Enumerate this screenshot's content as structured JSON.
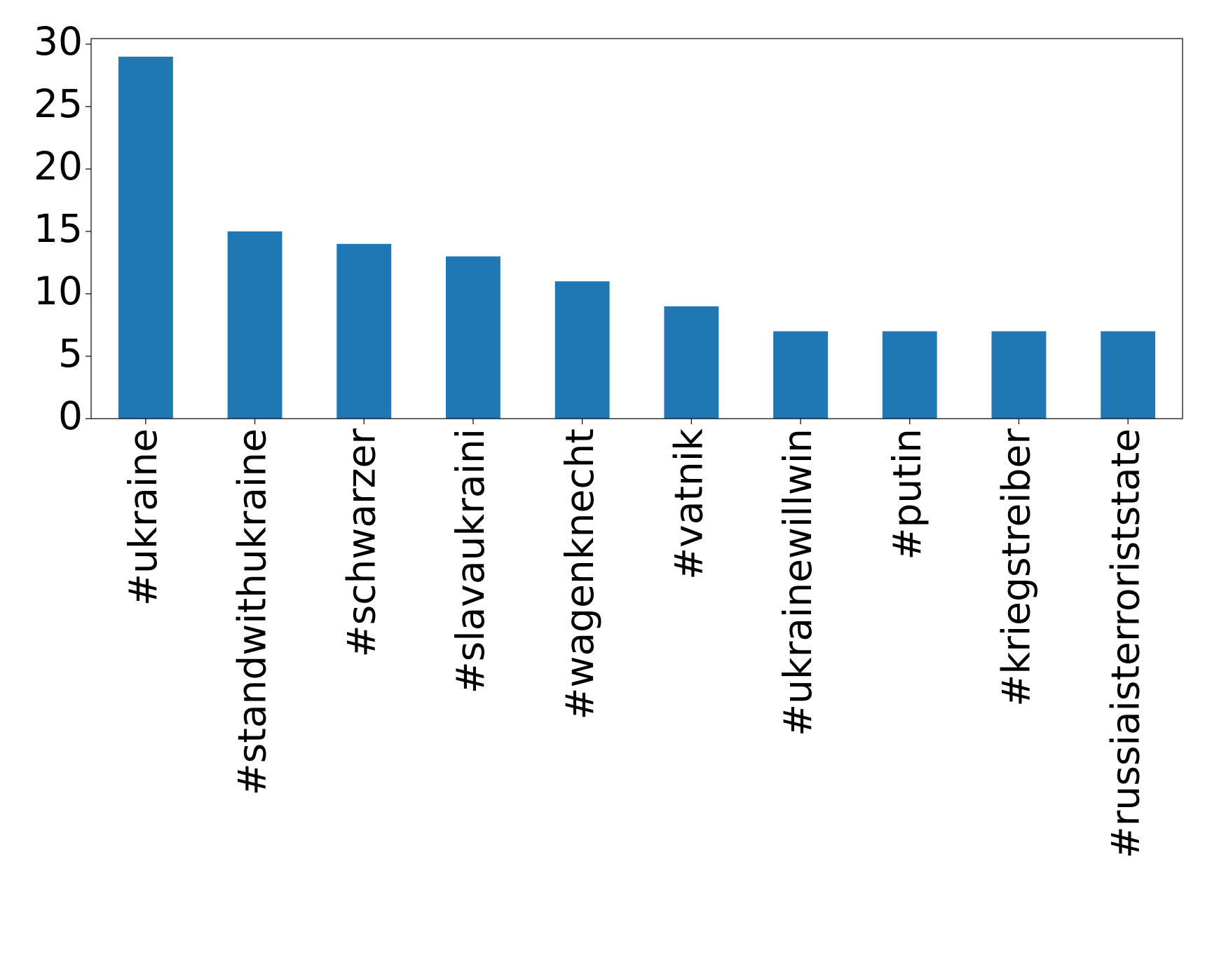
{
  "chart_data": {
    "type": "bar",
    "categories": [
      "#ukraine",
      "#standwithukraine",
      "#schwarzer",
      "#slavaukraini",
      "#wagenknecht",
      "#vatnik",
      "#ukrainewillwin",
      "#putin",
      "#kriegstreiber",
      "#russiaisterroriststate"
    ],
    "values": [
      29,
      15,
      14,
      13,
      11,
      9,
      7,
      7,
      7,
      7
    ],
    "color": "#1f77b4",
    "ylim": [
      0,
      30.45
    ],
    "yticks": [
      0,
      5,
      10,
      15,
      20,
      25,
      30
    ],
    "grid": false
  }
}
